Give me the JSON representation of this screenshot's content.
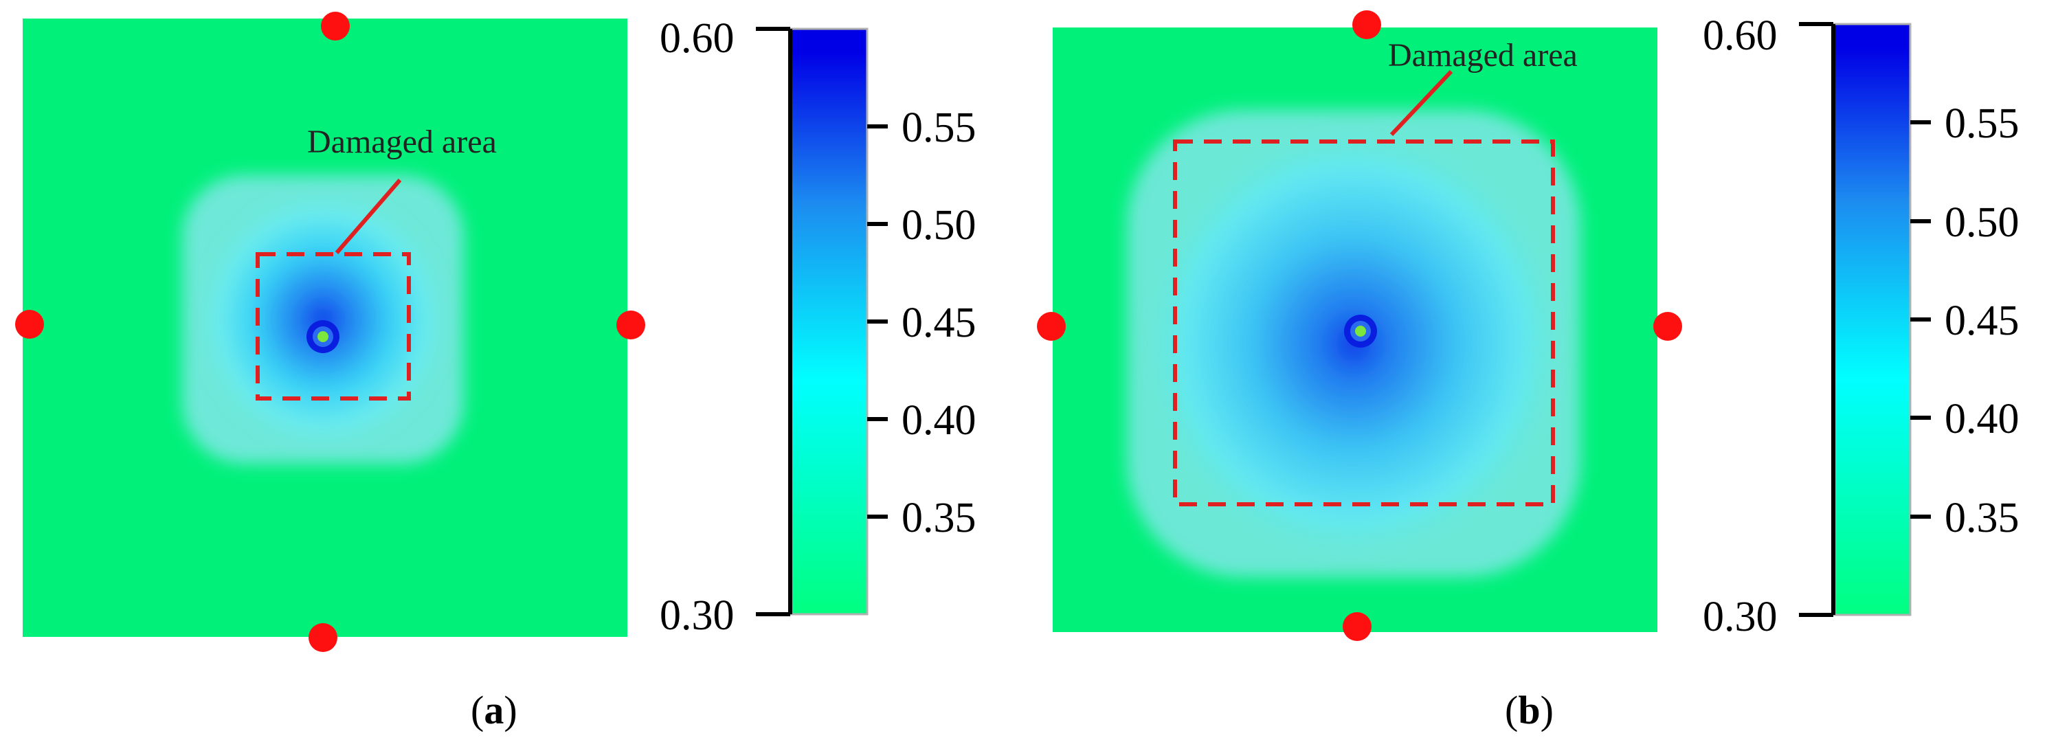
{
  "panels": [
    {
      "id": "a",
      "caption_open": "(",
      "caption_letter": "a",
      "caption_close": ")",
      "annotation": "Damaged area",
      "colorbar": {
        "min_label": "0.30",
        "max_label": "0.60",
        "ticks": [
          "0.55",
          "0.50",
          "0.45",
          "0.40",
          "0.35"
        ]
      }
    },
    {
      "id": "b",
      "caption_open": "(",
      "caption_letter": "b",
      "caption_close": ")",
      "annotation": "Damaged area",
      "colorbar": {
        "min_label": "0.30",
        "max_label": "0.60",
        "ticks": [
          "0.55",
          "0.50",
          "0.45",
          "0.40",
          "0.35"
        ]
      }
    }
  ],
  "colors": {
    "background_field": "#00f07a",
    "low": "#00ff80",
    "mid": "#00ffff",
    "high": "#0000e6",
    "marker": "#ff1010",
    "damage_outline": "#e02020",
    "center_spot": "#7de63c"
  }
}
